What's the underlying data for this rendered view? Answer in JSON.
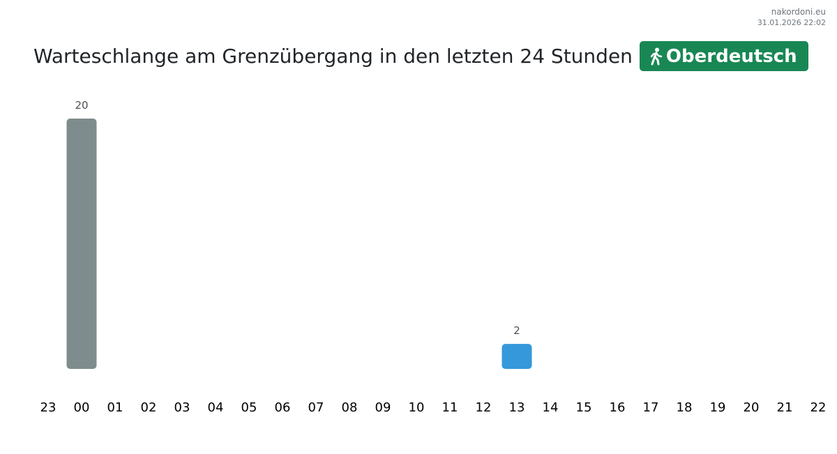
{
  "site": {
    "name": "nakordoni.eu",
    "timestamp": "31.01.2026 22:02"
  },
  "header": {
    "title": "Warteschlange am Grenzübergang in den letzten 24 Stunden",
    "badge": {
      "label": "Oberdeutsch",
      "icon": "pedestrian-icon",
      "color": "#198754"
    }
  },
  "chart_data": {
    "type": "bar",
    "title": "Warteschlange am Grenzübergang in den letzten 24 Stunden",
    "categories": [
      "23",
      "00",
      "01",
      "02",
      "03",
      "04",
      "05",
      "06",
      "07",
      "08",
      "09",
      "10",
      "11",
      "12",
      "13",
      "14",
      "15",
      "16",
      "17",
      "18",
      "19",
      "20",
      "21",
      "22"
    ],
    "values": [
      null,
      20,
      null,
      null,
      null,
      null,
      null,
      null,
      null,
      null,
      null,
      null,
      null,
      null,
      2,
      null,
      null,
      null,
      null,
      null,
      null,
      null,
      null,
      null
    ],
    "bar_colors": {
      "00": "#7f8c8d",
      "13": "#3498db"
    },
    "xlabel": "",
    "ylabel": "",
    "ylim": [
      0,
      20
    ],
    "grid": false,
    "legend": "none"
  }
}
